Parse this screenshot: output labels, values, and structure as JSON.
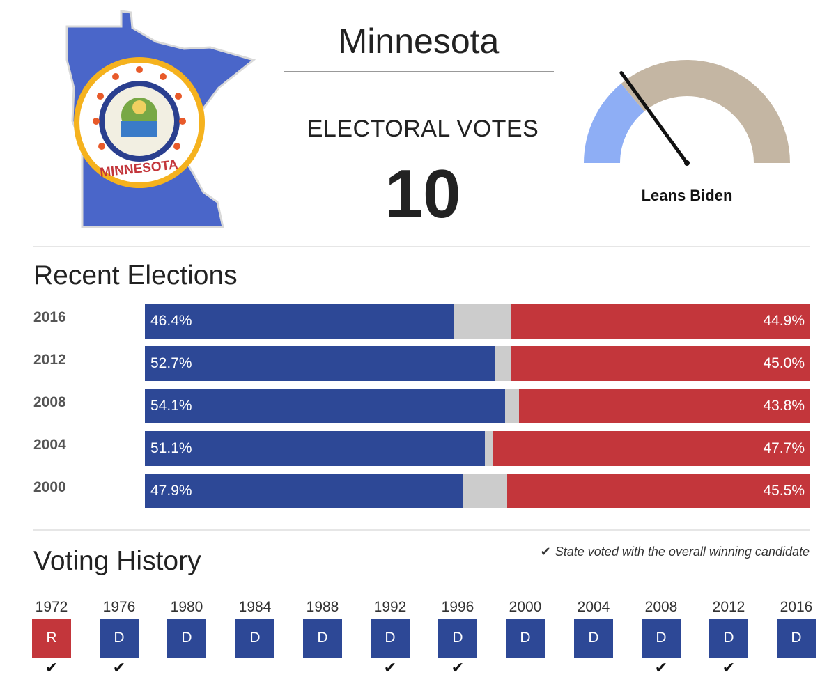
{
  "header": {
    "state_name": "Minnesota",
    "electoral_votes_label": "ELECTORAL VOTES",
    "electoral_votes": "10",
    "seal_text": "MINNESOTA"
  },
  "gauge": {
    "label": "Leans Biden",
    "needle_fraction": 0.3,
    "colors": {
      "dem": "#8eaef5",
      "rep": "#c4b6a3",
      "needle": "#111111"
    }
  },
  "colors": {
    "dem": "#2d4896",
    "rep": "#c3363b",
    "other": "#cccccc"
  },
  "recent_elections": {
    "title": "Recent Elections",
    "chart_data": {
      "type": "bar",
      "categories": [
        "2016",
        "2012",
        "2008",
        "2004",
        "2000"
      ],
      "series": [
        {
          "values": [
            46.4,
            52.7,
            54.1,
            51.1,
            47.9
          ],
          "labels": [
            "46.4%",
            "52.7%",
            "54.1%",
            "51.1%",
            "47.9%"
          ]
        },
        {
          "values": [
            44.9,
            45.0,
            43.8,
            47.7,
            45.5
          ],
          "labels": [
            "44.9%",
            "45.0%",
            "43.8%",
            "47.7%",
            "45.5%"
          ]
        }
      ]
    }
  },
  "voting_history": {
    "title": "Voting History",
    "legend_check": "✔",
    "legend_text": "State voted with the overall winning candidate",
    "entries": [
      {
        "year": "1972",
        "party": "R",
        "winner": true
      },
      {
        "year": "1976",
        "party": "D",
        "winner": true
      },
      {
        "year": "1980",
        "party": "D",
        "winner": false
      },
      {
        "year": "1984",
        "party": "D",
        "winner": false
      },
      {
        "year": "1988",
        "party": "D",
        "winner": false
      },
      {
        "year": "1992",
        "party": "D",
        "winner": true
      },
      {
        "year": "1996",
        "party": "D",
        "winner": true
      },
      {
        "year": "2000",
        "party": "D",
        "winner": false
      },
      {
        "year": "2004",
        "party": "D",
        "winner": false
      },
      {
        "year": "2008",
        "party": "D",
        "winner": true
      },
      {
        "year": "2012",
        "party": "D",
        "winner": true
      },
      {
        "year": "2016",
        "party": "D",
        "winner": false
      }
    ]
  }
}
